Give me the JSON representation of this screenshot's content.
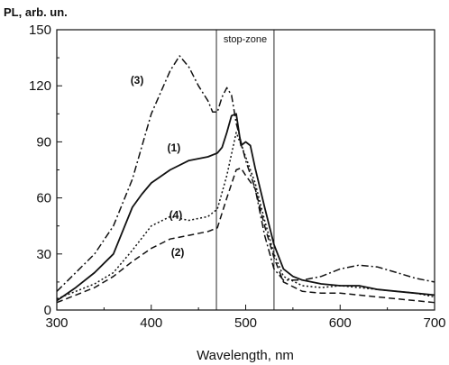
{
  "chart_data": {
    "type": "line",
    "title": "",
    "xlabel": "Wavelength, nm",
    "ylabel": "PL, arb. un.",
    "xlim": [
      300,
      700
    ],
    "ylim": [
      0,
      150
    ],
    "xticks": [
      300,
      400,
      500,
      600,
      700
    ],
    "yticks": [
      0,
      30,
      60,
      90,
      120,
      150
    ],
    "grid": false,
    "stop_zone": {
      "label": "stop-zone",
      "from": 469,
      "to": 530
    },
    "series": [
      {
        "name": "(1)",
        "label_at": [
          424,
          85
        ],
        "dash": "solid",
        "x": [
          300,
          320,
          340,
          360,
          380,
          390,
          400,
          420,
          440,
          460,
          470,
          475,
          480,
          485,
          490,
          495,
          500,
          505,
          510,
          520,
          530,
          540,
          550,
          560,
          570,
          580,
          600,
          620,
          640,
          660,
          680,
          700
        ],
        "y": [
          5,
          12,
          20,
          30,
          55,
          62,
          68,
          75,
          80,
          82,
          84,
          87,
          95,
          104,
          105,
          88,
          90,
          88,
          76,
          55,
          35,
          22,
          18,
          16,
          15,
          14,
          13,
          13,
          11,
          10,
          9,
          8
        ]
      },
      {
        "name": "(2)",
        "label_at": [
          428,
          29
        ],
        "dash": "longdash",
        "x": [
          300,
          320,
          340,
          360,
          380,
          400,
          420,
          440,
          460,
          470,
          480,
          490,
          495,
          500,
          510,
          520,
          530,
          540,
          560,
          580,
          600,
          620,
          640,
          660,
          680,
          700
        ],
        "y": [
          4,
          8,
          12,
          18,
          26,
          33,
          38,
          40,
          42,
          44,
          60,
          75,
          76,
          72,
          65,
          45,
          28,
          15,
          10,
          9,
          9,
          8,
          7,
          6,
          5,
          4
        ]
      },
      {
        "name": "(3)",
        "label_at": [
          385,
          121
        ],
        "dash": "dashdot",
        "x": [
          300,
          320,
          340,
          360,
          380,
          400,
          420,
          430,
          440,
          450,
          460,
          465,
          470,
          475,
          480,
          485,
          490,
          495,
          500,
          510,
          520,
          530,
          540,
          560,
          580,
          600,
          620,
          640,
          660,
          680,
          700
        ],
        "y": [
          10,
          20,
          30,
          45,
          70,
          105,
          128,
          136,
          130,
          120,
          112,
          106,
          106,
          114,
          119,
          115,
          100,
          90,
          80,
          65,
          40,
          22,
          16,
          16,
          18,
          22,
          24,
          23,
          20,
          17,
          15
        ]
      },
      {
        "name": "(4)",
        "label_at": [
          426,
          49
        ],
        "dash": "dotted",
        "x": [
          300,
          320,
          340,
          360,
          380,
          400,
          420,
          440,
          460,
          470,
          480,
          490,
          500,
          510,
          520,
          530,
          540,
          560,
          580,
          600,
          620,
          640,
          660,
          680,
          700
        ],
        "y": [
          6,
          10,
          14,
          20,
          32,
          45,
          50,
          48,
          50,
          54,
          72,
          95,
          82,
          68,
          48,
          30,
          18,
          13,
          12,
          13,
          12,
          11,
          10,
          9,
          7
        ]
      }
    ]
  }
}
